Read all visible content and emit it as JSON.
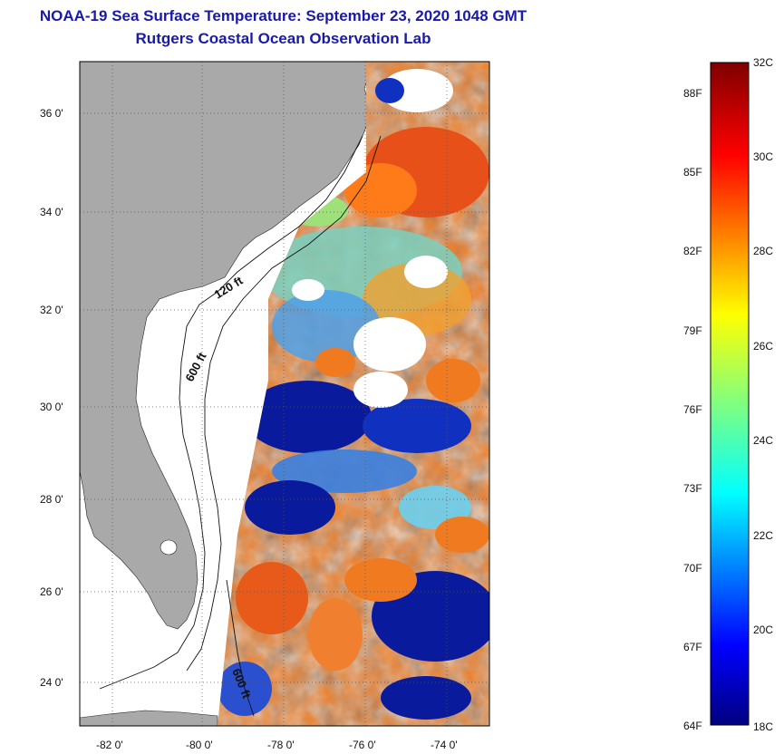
{
  "title": {
    "line1": "NOAA-19 Sea Surface Temperature:  September 23, 2020 1048 GMT",
    "line2": "Rutgers Coastal Ocean Observation Lab"
  },
  "axes": {
    "lon_ticks": [
      "-82 0'",
      "-80 0'",
      "-78 0'",
      "-76 0'",
      "-74 0'"
    ],
    "lat_ticks": [
      "36 0'",
      "34 0'",
      "32 0'",
      "30 0'",
      "28 0'",
      "26 0'",
      "24 0'"
    ]
  },
  "contours": {
    "label_120": "120 ft",
    "label_600_north": "600 ft",
    "label_600_south": "600 ft"
  },
  "colorbar": {
    "celsius": [
      "32C",
      "30C",
      "28C",
      "26C",
      "24C",
      "22C",
      "20C",
      "18C"
    ],
    "fahrenheit": [
      "88F",
      "85F",
      "82F",
      "79F",
      "76F",
      "73F",
      "70F",
      "67F",
      "64F"
    ]
  },
  "colors": {
    "title": "#1a1aa8",
    "land": "#a9a9a9",
    "warm": "#e8541c",
    "cold": "#0a1a9c",
    "mid": "#5fbfe0"
  }
}
